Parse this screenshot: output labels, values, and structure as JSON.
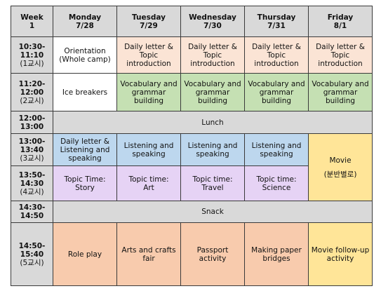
{
  "header": {
    "week_line1": "Week",
    "week_line2": "1",
    "days": [
      {
        "name": "Monday",
        "date": "7/28"
      },
      {
        "name": "Tuesday",
        "date": "7/29"
      },
      {
        "name": "Wednesday",
        "date": "7/30"
      },
      {
        "name": "Thursday",
        "date": "7/31"
      },
      {
        "name": "Friday",
        "date": "8/1"
      }
    ]
  },
  "periods": [
    {
      "start": "10:30-",
      "end": "11:10",
      "label": "(1교시)"
    },
    {
      "start": "11:20-",
      "end": "12:00",
      "label": "(2교시)"
    },
    {
      "start": "12:00-",
      "end": "13:00",
      "label": ""
    },
    {
      "start": "13:00-",
      "end": "13:40",
      "label": "(3교시)"
    },
    {
      "start": "13:50-",
      "end": "14:30",
      "label": "(4교시)"
    },
    {
      "start": "14:30-",
      "end": "14:50",
      "label": ""
    },
    {
      "start": "14:50-",
      "end": "15:40",
      "label": "(5교시)"
    }
  ],
  "rows": {
    "p1": [
      "Orientation\n(Whole camp)",
      "Daily letter &\nTopic\nintroduction",
      "Daily letter &\nTopic\nintroduction",
      "Daily letter &\nTopic\nintroduction",
      "Daily letter &\nTopic\nintroduction"
    ],
    "p2": [
      "Ice breakers",
      "Vocabulary and\ngrammar\nbuilding",
      "Vocabulary and\ngrammar\nbuilding",
      "Vocabulary and\ngrammar\nbuilding",
      "Vocabulary and\ngrammar\nbuilding"
    ],
    "lunch": "Lunch",
    "p3": [
      "Daily letter &\nListening and\nspeaking",
      "Listening and\nspeaking",
      "Listening and\nspeaking",
      "Listening and\nspeaking"
    ],
    "movie": {
      "title": "Movie",
      "subtitle": "(분반별로)"
    },
    "p4": [
      "Topic Time:\nStory",
      "Topic time:\nArt",
      "Topic time:\nTravel",
      "Topic time:\nScience"
    ],
    "snack": "Snack",
    "p5": [
      "Role play",
      "Arts and crafts\nfair",
      "Passport\nactivity",
      "Making paper\nbridges",
      "Movie follow-up\nactivity"
    ]
  },
  "colors": {
    "header_gray": "#d9d9d9",
    "peach": "#fbe4d5",
    "green": "#c5e0b3",
    "blue": "#bdd7ee",
    "lavender": "#e6d3f5",
    "yellow": "#ffe598",
    "salmon": "#f8cbad"
  }
}
